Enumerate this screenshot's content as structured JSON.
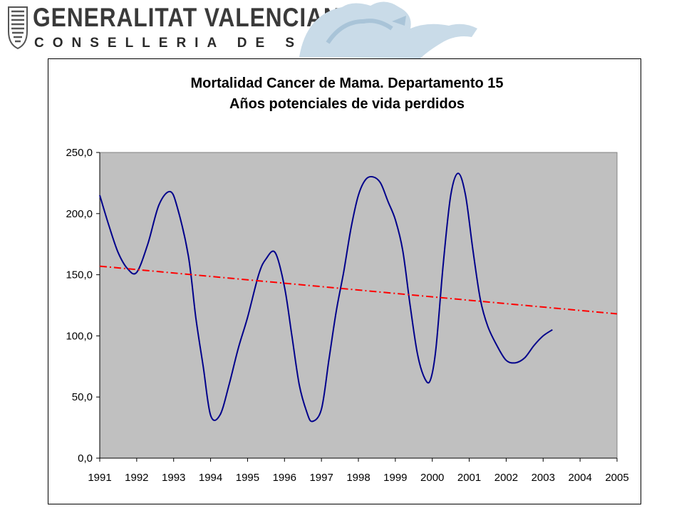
{
  "header": {
    "line1": "GENERALITAT VALENCIANA",
    "line2": "CONSELLERIA DE SANITAT",
    "logo_icon": "valencia-shield-icon",
    "watermark_icon": "bat-emblem-icon"
  },
  "chart_data": {
    "type": "line",
    "title_line1": "Mortalidad Cancer de Mama. Departamento 15",
    "title_line2": "Años potenciales de vida perdidos",
    "xlabel": "",
    "ylabel": "",
    "categories": [
      "1991",
      "1992",
      "1993",
      "1994",
      "1995",
      "1996",
      "1997",
      "1998",
      "1999",
      "2000",
      "2001",
      "2002",
      "2003",
      "2004",
      "2005"
    ],
    "y_ticks": [
      "0,0",
      "50,0",
      "100,0",
      "150,0",
      "200,0",
      "250,0"
    ],
    "ylim": [
      0,
      250
    ],
    "plot_background": "#c0c0c0",
    "grid": false,
    "legend": "none",
    "series": [
      {
        "style": "solid",
        "color": "#00008b",
        "points": [
          [
            1991.0,
            215
          ],
          [
            1991.25,
            190
          ],
          [
            1991.5,
            168
          ],
          [
            1991.75,
            155
          ],
          [
            1992.0,
            152
          ],
          [
            1992.3,
            175
          ],
          [
            1992.6,
            207
          ],
          [
            1992.9,
            218
          ],
          [
            1993.1,
            205
          ],
          [
            1993.4,
            165
          ],
          [
            1993.6,
            115
          ],
          [
            1993.8,
            75
          ],
          [
            1994.0,
            35
          ],
          [
            1994.25,
            35
          ],
          [
            1994.5,
            60
          ],
          [
            1994.75,
            90
          ],
          [
            1995.0,
            115
          ],
          [
            1995.3,
            150
          ],
          [
            1995.5,
            163
          ],
          [
            1995.75,
            168
          ],
          [
            1996.0,
            140
          ],
          [
            1996.2,
            100
          ],
          [
            1996.4,
            60
          ],
          [
            1996.6,
            38
          ],
          [
            1996.75,
            30
          ],
          [
            1997.0,
            40
          ],
          [
            1997.2,
            80
          ],
          [
            1997.4,
            120
          ],
          [
            1997.6,
            152
          ],
          [
            1997.8,
            188
          ],
          [
            1998.0,
            215
          ],
          [
            1998.2,
            228
          ],
          [
            1998.4,
            230
          ],
          [
            1998.6,
            225
          ],
          [
            1998.8,
            210
          ],
          [
            1999.0,
            195
          ],
          [
            1999.2,
            170
          ],
          [
            1999.4,
            125
          ],
          [
            1999.6,
            85
          ],
          [
            1999.8,
            65
          ],
          [
            1999.95,
            64
          ],
          [
            2000.1,
            90
          ],
          [
            2000.3,
            160
          ],
          [
            2000.5,
            215
          ],
          [
            2000.7,
            233
          ],
          [
            2000.9,
            215
          ],
          [
            2001.1,
            170
          ],
          [
            2001.3,
            130
          ],
          [
            2001.5,
            108
          ],
          [
            2001.75,
            92
          ],
          [
            2002.0,
            80
          ],
          [
            2002.25,
            78
          ],
          [
            2002.5,
            82
          ],
          [
            2002.75,
            92
          ],
          [
            2003.0,
            100
          ],
          [
            2003.25,
            105
          ]
        ]
      },
      {
        "style": "dash-dot",
        "color": "#ff0000",
        "points": [
          [
            1991.0,
            157
          ],
          [
            2005.0,
            118
          ]
        ]
      }
    ]
  }
}
